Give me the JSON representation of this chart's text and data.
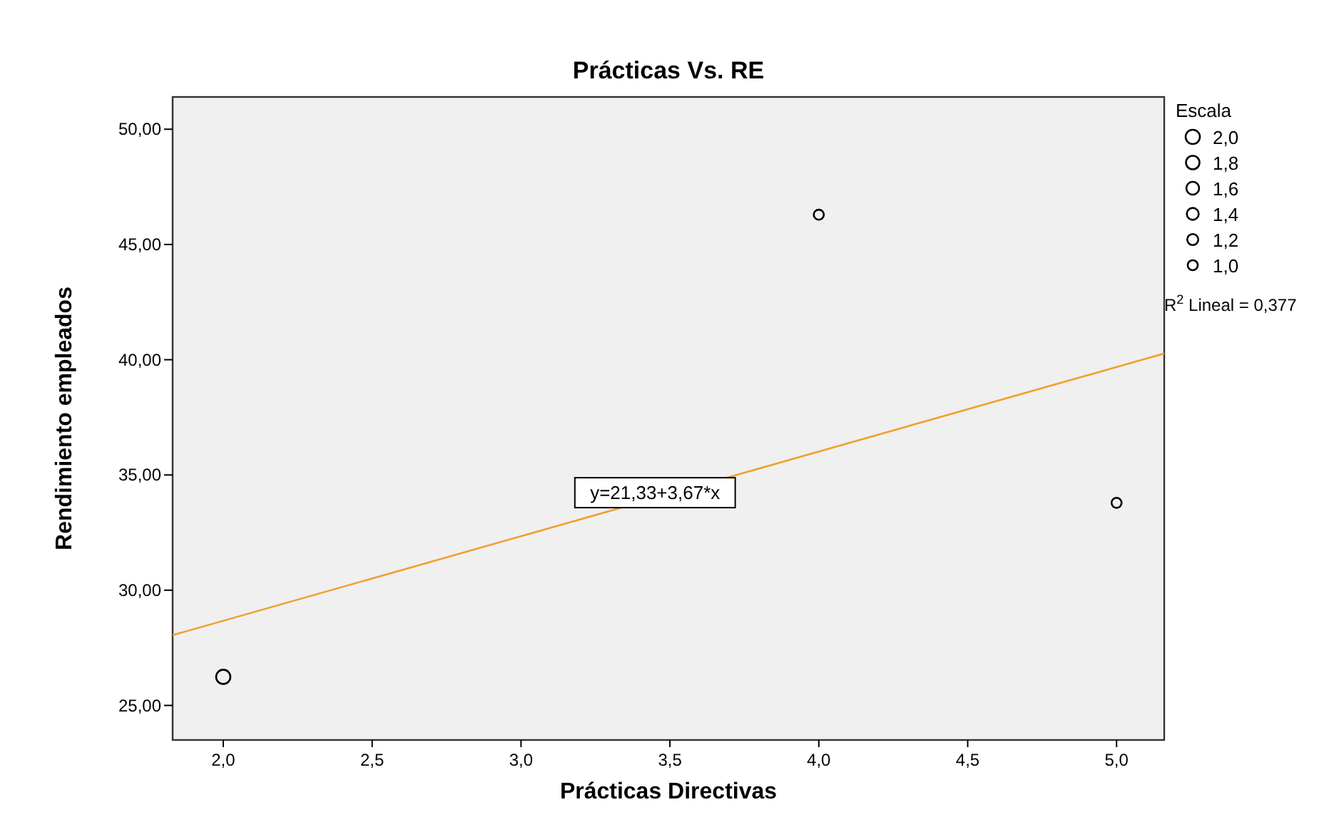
{
  "chart_data": {
    "type": "bubble",
    "title": "Prácticas Vs. RE",
    "xlabel": "Prácticas Directivas",
    "ylabel": "Rendimiento empleados",
    "legend_title": "Escala",
    "xlim": [
      1.83,
      5.16
    ],
    "ylim": [
      23.5,
      51.4
    ],
    "xticks": [
      {
        "value": 2,
        "label": "2,0"
      },
      {
        "value": 2.5,
        "label": "2,5"
      },
      {
        "value": 3,
        "label": "3,0"
      },
      {
        "value": 3.5,
        "label": "3,5"
      },
      {
        "value": 4,
        "label": "4,0"
      },
      {
        "value": 4.5,
        "label": "4,5"
      },
      {
        "value": 5,
        "label": "5,0"
      }
    ],
    "yticks": [
      {
        "value": 25,
        "label": "25,00"
      },
      {
        "value": 30,
        "label": "30,00"
      },
      {
        "value": 35,
        "label": "35,00"
      },
      {
        "value": 40,
        "label": "40,00"
      },
      {
        "value": 45,
        "label": "45,00"
      },
      {
        "value": 50,
        "label": "50,00"
      }
    ],
    "size_legend": [
      {
        "value": 2,
        "label": "2,0"
      },
      {
        "value": 1.8,
        "label": "1,8"
      },
      {
        "value": 1.6,
        "label": "1,6"
      },
      {
        "value": 1.4,
        "label": "1,4"
      },
      {
        "value": 1.2,
        "label": "1,2"
      },
      {
        "value": 1,
        "label": "1,0"
      }
    ],
    "grid": false,
    "series": [
      {
        "marker": "circle",
        "color": "#000000",
        "x": [
          2,
          4,
          5
        ],
        "values": [
          26.24,
          46.29,
          33.79
        ],
        "sizes": [
          2,
          1,
          1
        ]
      },
      {
        "type": "line",
        "color": "#f0a030",
        "x": [
          1.83,
          5.16
        ],
        "values": [
          28.05,
          40.27
        ]
      }
    ],
    "annotations": [
      {
        "text": "y=21,33+3,67*x",
        "x": 3.45,
        "y": 34.2
      },
      "R$^{2}$ Lineal = 0,377"
    ]
  }
}
